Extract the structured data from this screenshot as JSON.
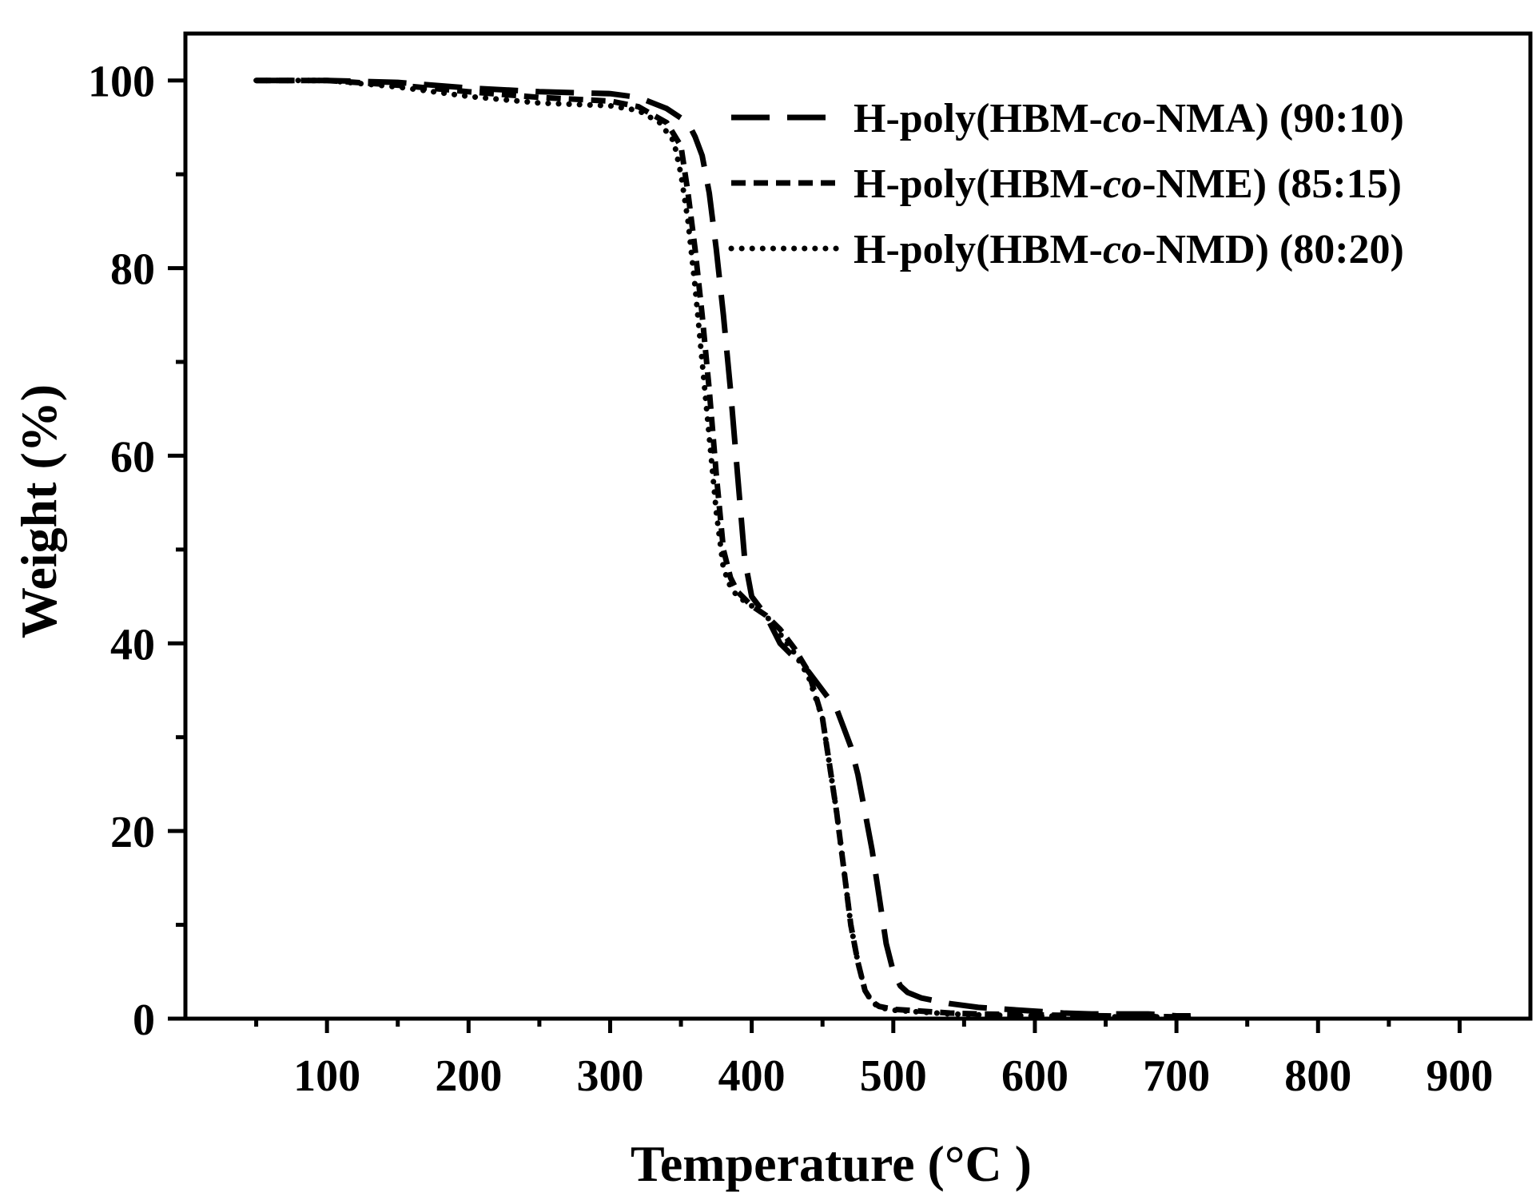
{
  "chart_data": {
    "type": "line",
    "xlabel": "Temperature (°C )",
    "ylabel": "Weight (%)",
    "xlim": [
      0,
      950
    ],
    "ylim": [
      0,
      105
    ],
    "xticks": [
      100,
      200,
      300,
      400,
      500,
      600,
      700,
      800,
      900
    ],
    "xticks_minor": [
      50,
      150,
      250,
      350,
      450,
      550,
      650,
      750,
      850
    ],
    "yticks": [
      0,
      20,
      40,
      60,
      80,
      100
    ],
    "yticks_minor": [
      10,
      30,
      50,
      70,
      90
    ],
    "grid": false,
    "legend_position": "top-right",
    "series": [
      {
        "name": "H-poly(HBM-co-NMA) (90:10)",
        "legend_parts": [
          "H-poly(HBM-",
          "co",
          "-NMA) (90:10)"
        ],
        "dash": "long-dash",
        "x": [
          50,
          100,
          150,
          200,
          250,
          300,
          320,
          340,
          355,
          360,
          365,
          370,
          375,
          380,
          385,
          390,
          395,
          400,
          410,
          420,
          430,
          440,
          450,
          460,
          465,
          470,
          475,
          480,
          485,
          490,
          495,
          500,
          505,
          510,
          520,
          540,
          560,
          580,
          600,
          620,
          640,
          660,
          680,
          700,
          710
        ],
        "y": [
          100,
          100,
          99.8,
          99.2,
          98.8,
          98.6,
          98.2,
          97,
          95.5,
          94,
          92,
          88,
          82,
          75,
          67,
          58,
          49,
          45,
          43,
          40,
          38.5,
          37,
          35,
          33,
          31,
          29,
          26,
          22,
          18,
          13,
          8,
          5,
          3.5,
          2.8,
          2.2,
          1.6,
          1.2,
          1,
          0.8,
          0.6,
          0.5,
          0.5,
          0.5,
          0.3,
          0.3
        ]
      },
      {
        "name": "H-poly(HBM-co-NME) (85:15)",
        "legend_parts": [
          "H-poly(HBM-",
          "co",
          "-NME) (85:15)"
        ],
        "dash": "short-dash",
        "x": [
          50,
          100,
          150,
          200,
          250,
          300,
          320,
          340,
          350,
          355,
          360,
          365,
          370,
          375,
          380,
          385,
          390,
          400,
          410,
          420,
          430,
          440,
          450,
          455,
          460,
          465,
          470,
          475,
          480,
          485,
          490,
          500,
          520,
          540,
          560,
          600,
          650,
          700,
          710
        ],
        "y": [
          100,
          100,
          99.5,
          98.8,
          98.2,
          97.8,
          97.2,
          95.5,
          93,
          88,
          82,
          75,
          67,
          58,
          50,
          47,
          45.5,
          44,
          43,
          41.5,
          39.5,
          37,
          32,
          27,
          22,
          16,
          10,
          6,
          3,
          1.8,
          1.3,
          1,
          0.8,
          0.6,
          0.5,
          0.4,
          0.3,
          0.2,
          0.2
        ]
      },
      {
        "name": "H-poly(HBM-co-NMD) (80:20)",
        "legend_parts": [
          "H-poly(HBM-",
          "co",
          "-NMD) (80:20)"
        ],
        "dash": "dotted",
        "x": [
          50,
          100,
          150,
          200,
          250,
          300,
          320,
          335,
          345,
          350,
          355,
          360,
          365,
          370,
          375,
          380,
          385,
          390,
          400,
          410,
          420,
          430,
          440,
          450,
          455,
          460,
          465,
          470,
          475,
          480,
          485,
          490,
          500,
          520,
          540,
          560,
          600,
          650,
          700,
          710
        ],
        "y": [
          100,
          100,
          99.3,
          98.3,
          97.6,
          97.3,
          96.8,
          95.5,
          93.5,
          90,
          85,
          78,
          70,
          62,
          54,
          48,
          46,
          45,
          44,
          43,
          41,
          39,
          36.5,
          32,
          27,
          22,
          16,
          10,
          6,
          3,
          1.8,
          1.2,
          0.9,
          0.7,
          0.5,
          0.4,
          0.3,
          0.2,
          0.2,
          0.2
        ]
      }
    ]
  }
}
